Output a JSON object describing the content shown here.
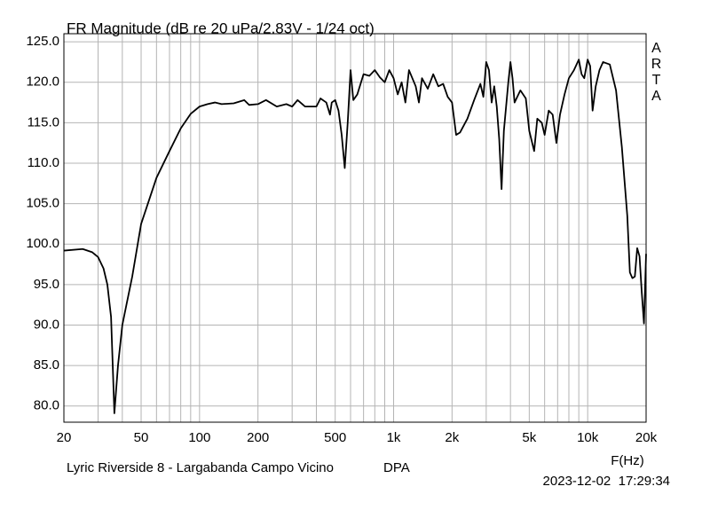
{
  "chart_data": {
    "type": "line",
    "title": "FR Magnitude (dB re 20 uPa/2.83V - 1/24 oct)",
    "watermark": "ARTA",
    "x_label": "F(Hz)",
    "caption": "Lyric Riverside 8 - Largabanda Campo Vicino",
    "annotation": "DPA",
    "timestamp": "2023-12-02  17:29:34",
    "xlog": true,
    "grid": true,
    "color": "#000000",
    "xlim": [
      20,
      20000
    ],
    "ylim": [
      78,
      126
    ],
    "xticks": [
      20,
      50,
      100,
      200,
      500,
      {
        "value": 1000,
        "label": "1k"
      },
      {
        "value": 2000,
        "label": "2k"
      },
      {
        "value": 5000,
        "label": "5k"
      },
      {
        "value": 10000,
        "label": "10k"
      },
      {
        "value": 20000,
        "label": "20k"
      }
    ],
    "xminor_ticks": [
      30,
      40,
      60,
      70,
      80,
      90,
      300,
      400,
      600,
      700,
      800,
      900,
      3000,
      4000,
      6000,
      7000,
      8000,
      9000
    ],
    "yticks": [
      {
        "value": 80,
        "label": "80.0"
      },
      {
        "value": 85,
        "label": "85.0"
      },
      {
        "value": 90,
        "label": "90.0"
      },
      {
        "value": 95,
        "label": "95.0"
      },
      {
        "value": 100,
        "label": "100.0"
      },
      {
        "value": 105,
        "label": "105.0"
      },
      {
        "value": 110,
        "label": "110.0"
      },
      {
        "value": 115,
        "label": "115.0"
      },
      {
        "value": 120,
        "label": "120.0"
      },
      {
        "value": 125,
        "label": "125.0"
      }
    ],
    "x": [
      20,
      25,
      28,
      30,
      32,
      33.5,
      35,
      36.4,
      38,
      40,
      42,
      45,
      50,
      60,
      70,
      80,
      90,
      100,
      110,
      120,
      130,
      150,
      170,
      180,
      200,
      220,
      250,
      280,
      300,
      320,
      350,
      400,
      420,
      450,
      470,
      480,
      500,
      520,
      540,
      560,
      580,
      600,
      620,
      650,
      700,
      750,
      800,
      850,
      900,
      950,
      1000,
      1050,
      1100,
      1150,
      1200,
      1300,
      1350,
      1400,
      1500,
      1600,
      1700,
      1800,
      1900,
      2000,
      2100,
      2200,
      2400,
      2600,
      2800,
      2900,
      3000,
      3100,
      3200,
      3300,
      3400,
      3500,
      3600,
      3700,
      3900,
      4000,
      4100,
      4200,
      4500,
      4800,
      5000,
      5300,
      5500,
      5800,
      6000,
      6300,
      6600,
      6900,
      7200,
      7600,
      8000,
      8500,
      9000,
      9300,
      9600,
      10000,
      10300,
      10600,
      11000,
      11500,
      12000,
      13000,
      14000,
      15000,
      16000,
      16500,
      17000,
      17500,
      18000,
      18500,
      19000,
      19500,
      20000
    ],
    "values": [
      99.2,
      99.4,
      99.0,
      98.4,
      97.0,
      95.0,
      91.0,
      79.1,
      85.0,
      90.0,
      92.5,
      96.0,
      102.5,
      108.2,
      111.5,
      114.3,
      116.1,
      117.0,
      117.3,
      117.5,
      117.3,
      117.4,
      117.8,
      117.2,
      117.3,
      117.8,
      117.0,
      117.3,
      117.0,
      117.8,
      117.0,
      117.0,
      118.0,
      117.5,
      116.0,
      117.5,
      117.8,
      116.5,
      113.5,
      109.4,
      115.0,
      121.5,
      117.8,
      118.5,
      121.0,
      120.8,
      121.5,
      120.6,
      120.0,
      121.5,
      120.5,
      118.5,
      120.0,
      117.5,
      121.5,
      119.5,
      117.5,
      120.5,
      119.2,
      121.0,
      119.5,
      119.8,
      118.2,
      117.5,
      113.5,
      113.8,
      115.5,
      117.8,
      119.8,
      118.2,
      122.5,
      121.5,
      117.5,
      119.5,
      117.0,
      113.0,
      106.8,
      114.0,
      120.0,
      122.5,
      120.5,
      117.5,
      119.0,
      118.0,
      114.0,
      111.5,
      115.5,
      115.0,
      113.5,
      116.5,
      116.0,
      112.5,
      116.0,
      118.5,
      120.5,
      121.5,
      122.8,
      121.0,
      120.5,
      122.8,
      122.0,
      116.5,
      119.5,
      121.5,
      122.5,
      122.2,
      119.0,
      112.0,
      103.5,
      96.5,
      95.8,
      96.0,
      99.5,
      98.5,
      94.0,
      90.2,
      98.8
    ]
  }
}
